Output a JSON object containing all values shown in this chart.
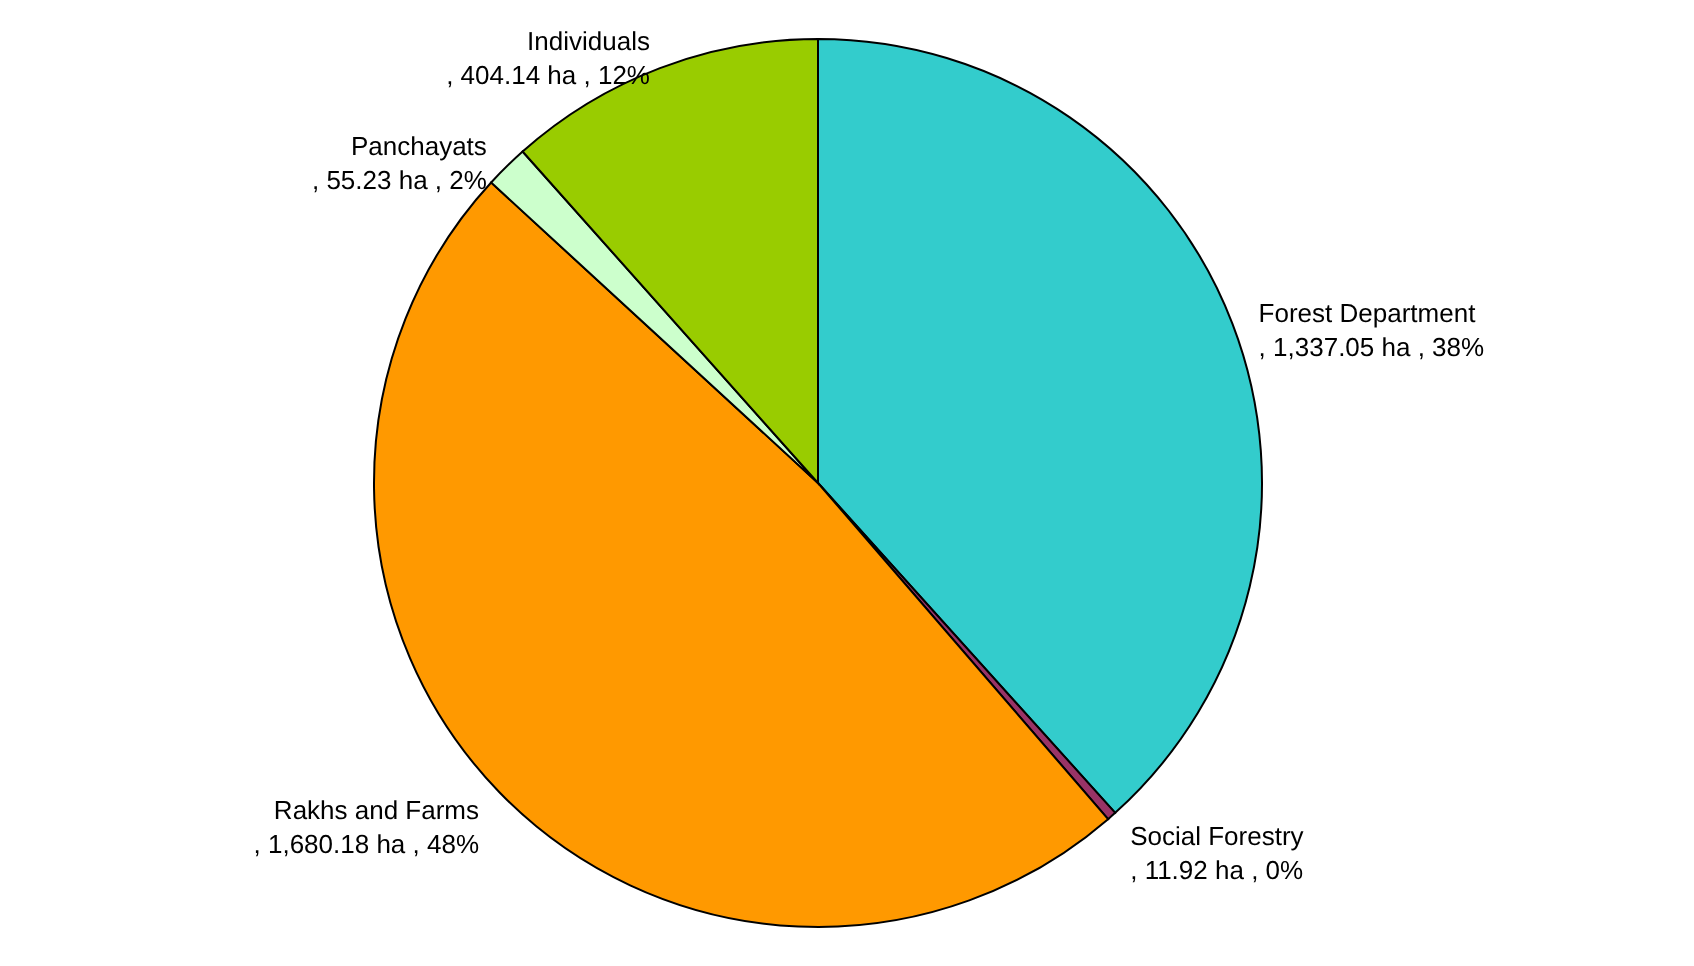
{
  "chart_data": {
    "type": "pie",
    "categories": [
      "Forest Department",
      "Social Forestry",
      "Rakhs and Farms",
      "Panchayats",
      "Individuals"
    ],
    "values": [
      1337.05,
      11.92,
      1680.18,
      55.23,
      404.14
    ],
    "value_labels": [
      ",  1,337.05 ha , 38%",
      ",  11.92 ha , 0%",
      ",  1,680.18 ha , 48%",
      ",  55.23 ha , 2%",
      ",  404.14 ha , 12%"
    ],
    "colors": [
      "#33cccc",
      "#993366",
      "#ff9900",
      "#ccffcc",
      "#99cc00"
    ]
  }
}
